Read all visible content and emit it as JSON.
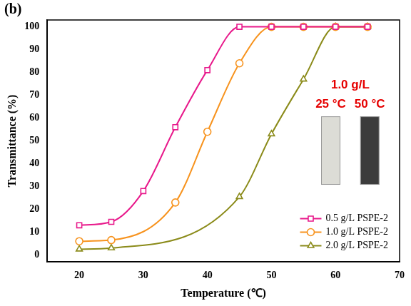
{
  "chart_data": {
    "type": "scatter",
    "panel_label": "(b)",
    "x_label": "Temperature (℃)",
    "y_label": "Transmittance (%)",
    "annotations": [
      "1.0 g/L",
      "25 °C",
      "50 °C"
    ],
    "xlim": [
      15,
      70
    ],
    "xticks": [
      20,
      30,
      40,
      50,
      60,
      70
    ],
    "ylim": [
      -3,
      103
    ],
    "yticks": [
      0,
      10,
      20,
      30,
      40,
      50,
      60,
      70,
      80,
      90,
      100
    ],
    "grid": false,
    "legend": "lower right",
    "series": [
      {
        "name": "0.5 g/L PSPE-2",
        "color": "#e8198b",
        "marker": "square",
        "line_style": "solid",
        "x": [
          20,
          25,
          30,
          35,
          40,
          45,
          50,
          55,
          60,
          65
        ],
        "values": [
          13,
          14.5,
          28,
          56,
          81,
          100,
          100,
          100,
          100,
          100
        ]
      },
      {
        "name": "1.0 g/L PSPE-2",
        "color": "#f7931e",
        "marker": "circle",
        "line_style": "solid",
        "x": [
          20,
          25,
          35,
          40,
          45,
          50,
          55,
          60,
          65
        ],
        "values": [
          6,
          6.5,
          23,
          54,
          84,
          100,
          100,
          100,
          100
        ]
      },
      {
        "name": "2.0 g/L PSPE-2",
        "color": "#8b8b1a",
        "marker": "triangle",
        "line_style": "solid",
        "x": [
          20,
          25,
          45,
          50,
          55,
          60,
          65
        ],
        "values": [
          2.5,
          3,
          25.5,
          53,
          77,
          100,
          100
        ]
      }
    ]
  }
}
